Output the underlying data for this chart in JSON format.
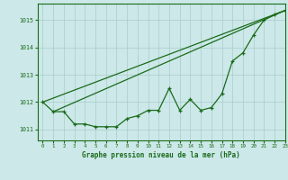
{
  "bg_color": "#cce8e8",
  "grid_color": "#aacccc",
  "line_color": "#1a6b1a",
  "xlabel": "Graphe pression niveau de la mer (hPa)",
  "xlim": [
    -0.5,
    23
  ],
  "ylim": [
    1010.6,
    1015.6
  ],
  "yticks": [
    1011,
    1012,
    1013,
    1014,
    1015
  ],
  "xticks": [
    0,
    1,
    2,
    3,
    4,
    5,
    6,
    7,
    8,
    9,
    10,
    11,
    12,
    13,
    14,
    15,
    16,
    17,
    18,
    19,
    20,
    21,
    22,
    23
  ],
  "hours": [
    0,
    1,
    2,
    3,
    4,
    5,
    6,
    7,
    8,
    9,
    10,
    11,
    12,
    13,
    14,
    15,
    16,
    17,
    18,
    19,
    20,
    21,
    22,
    23
  ],
  "main_line": [
    1012.0,
    1011.65,
    1011.65,
    1011.2,
    1011.2,
    1011.1,
    1011.1,
    1011.1,
    1011.4,
    1011.5,
    1011.7,
    1011.7,
    1012.5,
    1011.7,
    1012.1,
    1011.7,
    1011.8,
    1012.3,
    1013.5,
    1013.8,
    1014.45,
    1015.0,
    1015.2,
    1015.35
  ],
  "trend1_x": [
    0,
    23
  ],
  "trend1_y": [
    1012.0,
    1015.35
  ],
  "trend2_x": [
    1,
    23
  ],
  "trend2_y": [
    1011.65,
    1015.35
  ]
}
